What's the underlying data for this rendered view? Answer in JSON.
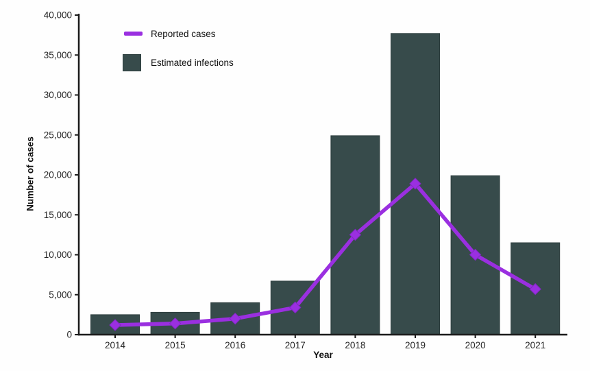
{
  "background": "#fefefe",
  "axes": {
    "line_color": "#1a1a1a",
    "tick_label_color": "#262626"
  },
  "chart_data": {
    "type": "bar",
    "title": "",
    "xlabel": "Year",
    "ylabel": "Number of cases",
    "categories": [
      "2014",
      "2015",
      "2016",
      "2017",
      "2018",
      "2019",
      "2020",
      "2021"
    ],
    "series": [
      {
        "name": "Estimated infections",
        "kind": "bar",
        "color": "#374b4b",
        "edge_color": "#2d3e3e",
        "values": [
          2500,
          2800,
          4000,
          6700,
          24900,
          37700,
          19900,
          11500
        ]
      },
      {
        "name": "Reported cases",
        "kind": "line",
        "color": "#9a2fe0",
        "marker": "diamond",
        "values": [
          1200,
          1400,
          2000,
          3400,
          12500,
          18900,
          10000,
          5700
        ]
      }
    ],
    "ylim": [
      0,
      40000
    ],
    "ytick_interval": 5000,
    "ytick_labels": [
      "0",
      "5,000",
      "10,000",
      "15,000",
      "20,000",
      "25,000",
      "30,000",
      "35,000",
      "40,000"
    ],
    "grid": false,
    "legend_position": "top-left"
  }
}
